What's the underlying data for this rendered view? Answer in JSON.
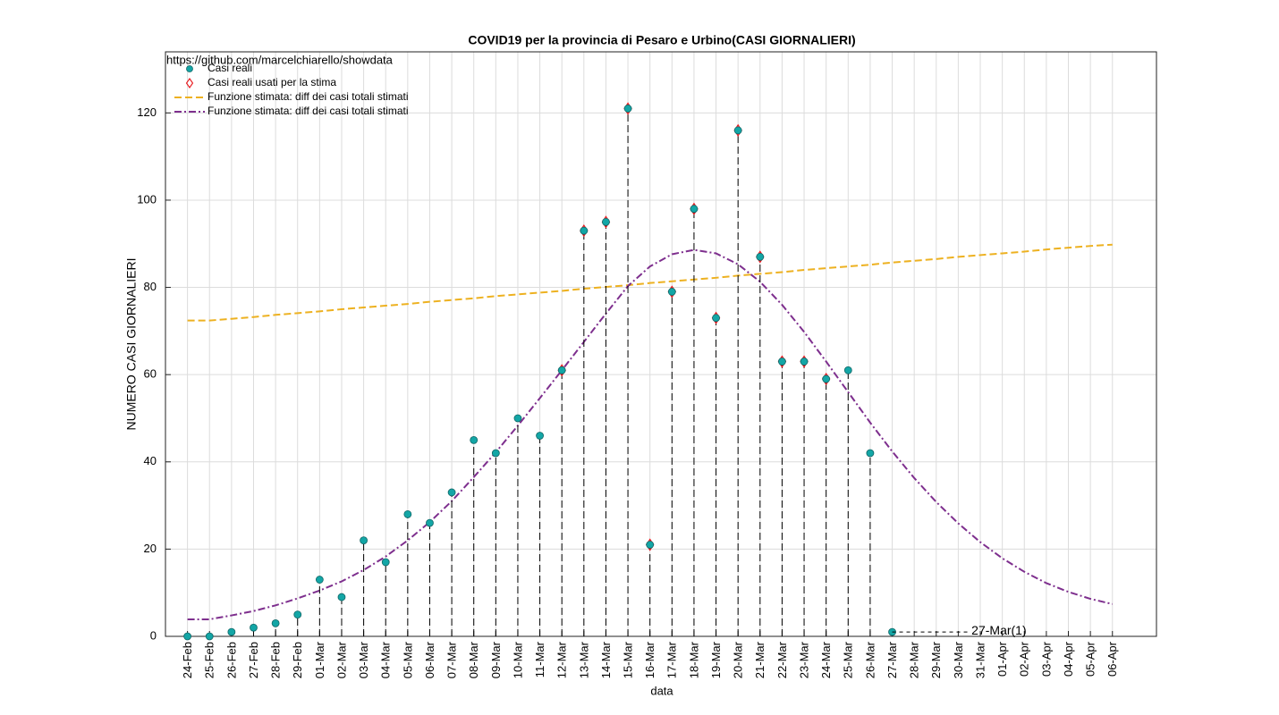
{
  "chart_data": {
    "type": "line",
    "title": "COVID19 per la provincia di Pesaro e Urbino(CASI GIORNALIERI)",
    "source": "https://github.com/marcelchiarello/showdata",
    "x_label": "data",
    "y_label": "NUMERO CASI GIORNALIERI",
    "annotation": "27-Mar(1)",
    "categories": [
      "24-Feb",
      "25-Feb",
      "26-Feb",
      "27-Feb",
      "28-Feb",
      "29-Feb",
      "01-Mar",
      "02-Mar",
      "03-Mar",
      "04-Mar",
      "05-Mar",
      "06-Mar",
      "07-Mar",
      "08-Mar",
      "09-Mar",
      "10-Mar",
      "11-Mar",
      "12-Mar",
      "13-Mar",
      "14-Mar",
      "15-Mar",
      "16-Mar",
      "17-Mar",
      "18-Mar",
      "19-Mar",
      "20-Mar",
      "21-Mar",
      "22-Mar",
      "23-Mar",
      "24-Mar",
      "25-Mar",
      "26-Mar",
      "27-Mar",
      "28-Mar",
      "29-Mar",
      "30-Mar",
      "31-Mar",
      "01-Apr",
      "02-Apr",
      "03-Apr",
      "04-Apr",
      "05-Apr",
      "06-Apr"
    ],
    "series": [
      {
        "name": "Casi reali",
        "mark": "circle",
        "stem": true,
        "color": "#13a6a6",
        "values": [
          0,
          0,
          1,
          2,
          3,
          5,
          13,
          9,
          22,
          17,
          28,
          26,
          33,
          45,
          42,
          50,
          46,
          61,
          93,
          95,
          121,
          21,
          79,
          98,
          73,
          116,
          87,
          63,
          63,
          59,
          61,
          42,
          1,
          null,
          null,
          null,
          null,
          null,
          null,
          null,
          null,
          null,
          null
        ]
      },
      {
        "name": "Casi reali usati per la stima",
        "mark": "diamond",
        "color": "#e8171c",
        "values": [
          null,
          null,
          null,
          null,
          null,
          null,
          null,
          null,
          null,
          null,
          null,
          null,
          null,
          null,
          null,
          null,
          null,
          61,
          93,
          95,
          121,
          21,
          79,
          98,
          73,
          116,
          87,
          63,
          63,
          59,
          null,
          null,
          null,
          null,
          null,
          null,
          null,
          null,
          null,
          null,
          null,
          null,
          null
        ]
      },
      {
        "name": "Funzione stimata: diff dei casi totali stimati",
        "mark": "dash-line",
        "color": "#EDB120",
        "values": [
          72.4,
          72.4,
          72.8,
          73.2,
          73.7,
          74.1,
          74.5,
          75.0,
          75.4,
          75.8,
          76.2,
          76.7,
          77.1,
          77.5,
          78.0,
          78.4,
          78.8,
          79.2,
          79.7,
          80.1,
          80.5,
          81.0,
          81.4,
          81.8,
          82.2,
          82.7,
          83.1,
          83.5,
          84.0,
          84.4,
          84.8,
          85.2,
          85.7,
          86.1,
          86.5,
          87.0,
          87.4,
          87.8,
          88.2,
          88.7,
          89.1,
          89.5,
          89.8
        ]
      },
      {
        "name": "Funzione stimata: diff dei casi totali stimati",
        "mark": "dashdot-line",
        "color": "#7E2F8E",
        "values": [
          3.9,
          3.9,
          4.8,
          5.8,
          7.1,
          8.7,
          10.5,
          12.6,
          15.2,
          18.3,
          22,
          26.2,
          31,
          36.5,
          42.2,
          48.3,
          54.6,
          61,
          67.5,
          74,
          80.3,
          84.8,
          87.6,
          88.6,
          87.8,
          85.3,
          81.3,
          76,
          69.8,
          63,
          56,
          49,
          42.4,
          36.3,
          30.8,
          25.9,
          21.6,
          17.9,
          14.8,
          12.2,
          10.2,
          8.6,
          7.4
        ]
      }
    ],
    "ylim": [
      0,
      134
    ],
    "yticks": [
      0,
      20,
      40,
      60,
      80,
      100,
      120
    ],
    "grid": true,
    "legend": "northwest"
  }
}
